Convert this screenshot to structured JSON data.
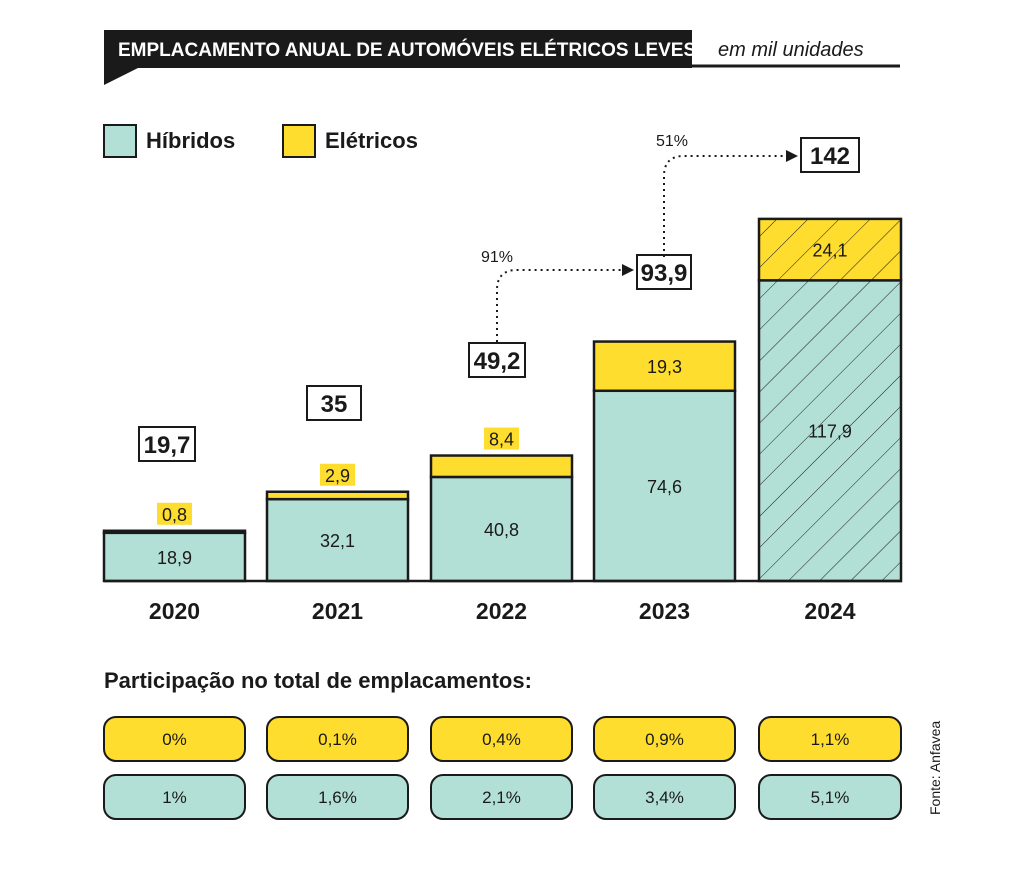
{
  "header": {
    "title": "EMPLACAMENTO ANUAL DE AUTOMÓVEIS ELÉTRICOS LEVES",
    "unit": "em mil unidades"
  },
  "legend": {
    "hybrid_label": "Híbridos",
    "electric_label": "Elétricos"
  },
  "colors": {
    "hybrid": "#b3e0d6",
    "electric": "#ffdd2e",
    "ink": "#1a1a1a"
  },
  "chart_data": {
    "type": "bar",
    "stacked": true,
    "title": "EMPLACAMENTO ANUAL DE AUTOMÓVEIS ELÉTRICOS LEVES",
    "ylabel": "em mil unidades",
    "categories": [
      "2020",
      "2021",
      "2022",
      "2023",
      "2024"
    ],
    "series": [
      {
        "name": "Híbridos",
        "values": [
          18.9,
          32.1,
          40.8,
          74.6,
          117.9
        ],
        "labels": [
          "18,9",
          "32,1",
          "40,8",
          "74,6",
          "117,9"
        ]
      },
      {
        "name": "Elétricos",
        "values": [
          0.8,
          2.9,
          8.4,
          19.3,
          24.1
        ],
        "labels": [
          "0,8",
          "2,9",
          "8,4",
          "19,3",
          "24,1"
        ]
      }
    ],
    "totals": [
      19.7,
      35,
      49.2,
      93.9,
      142
    ],
    "total_labels": [
      "19,7",
      "35",
      "49,2",
      "93,9",
      "142"
    ],
    "highlighted_category": "2024",
    "ylim": [
      0,
      142
    ],
    "growth_annotations": [
      {
        "from": "2022",
        "to": "2023",
        "label": "91%"
      },
      {
        "from": "2023",
        "to": "2024",
        "label": "51%"
      }
    ]
  },
  "share": {
    "title": "Participação no total de emplacamentos:",
    "electric": [
      "0%",
      "0,1%",
      "0,4%",
      "0,9%",
      "1,1%"
    ],
    "hybrid": [
      "1%",
      "1,6%",
      "2,1%",
      "3,4%",
      "5,1%"
    ]
  },
  "source": "Fonte: Anfavea"
}
